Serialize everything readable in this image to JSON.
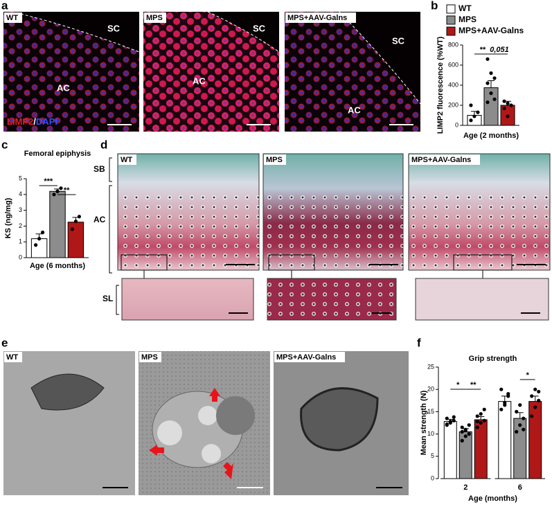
{
  "panel_labels": [
    "a",
    "b",
    "c",
    "d",
    "e",
    "f"
  ],
  "panel_a": {
    "images": [
      "WT",
      "MPS",
      "MPS+AAV-Galns"
    ],
    "regions": [
      "SC",
      "AC",
      "SC",
      "AC",
      "SC",
      "AC"
    ],
    "stain": [
      "LIMP2",
      "/",
      "DAPI"
    ]
  },
  "panel_d": {
    "images": [
      "WT",
      "MPS",
      "MPS+AAV-Galns"
    ],
    "zones": [
      "SB",
      "AC",
      "SL"
    ]
  },
  "panel_e": {
    "images": [
      "WT",
      "MPS",
      "MPS+AAV-Galns"
    ]
  },
  "chart_data": [
    {
      "type": "bar",
      "y_label": "LIMP2 fluorescence (%WT)",
      "x_label": "Age (2 months)",
      "ylim": [
        0,
        800
      ],
      "yticks": [
        0,
        200,
        400,
        600,
        800
      ],
      "legend": "top",
      "series": [
        {
          "name": "WT",
          "color": "#ffffff",
          "values": [
            100
          ],
          "errors": [
            40
          ],
          "points": [
            [
              50,
              90,
              130,
              200
            ]
          ]
        },
        {
          "name": "MPS",
          "color": "#8c8c8c",
          "values": [
            375
          ],
          "errors": [
            70
          ],
          "points": [
            [
              660,
              520,
              470,
              420,
              320,
              260,
              230
            ]
          ]
        },
        {
          "name": "MPS+AAV-Galns",
          "color": "#b01818",
          "values": [
            200
          ],
          "errors": [
            40
          ],
          "points": [
            [
              240,
              220,
              200,
              170,
              90
            ]
          ]
        }
      ],
      "annotations": [
        "**",
        "0,051"
      ]
    },
    {
      "type": "bar",
      "title": "Femoral epiphysis",
      "y_label": "KS (ng/mg)",
      "x_label": "Age (6 months)",
      "ylim": [
        0,
        5
      ],
      "yticks": [
        0,
        1,
        2,
        3,
        4,
        5
      ],
      "series": [
        {
          "color": "#ffffff",
          "values": [
            1.2
          ],
          "errors": [
            0.3
          ],
          "points": [
            [
              0.8,
              1.2,
              1.6
            ]
          ]
        },
        {
          "color": "#8c8c8c",
          "values": [
            4.2
          ],
          "errors": [
            0.15
          ],
          "points": [
            [
              4.0,
              4.2,
              4.4
            ]
          ]
        },
        {
          "color": "#b01818",
          "values": [
            2.25
          ],
          "errors": [
            0.3
          ],
          "points": [
            [
              1.8,
              2.3,
              2.6
            ]
          ]
        }
      ],
      "annotations": [
        "***",
        "**"
      ]
    },
    {
      "type": "bar",
      "title": "Grip strength",
      "y_label": "Mean strength (N)",
      "x_label": "Age (months)",
      "categories": [
        "2",
        "6"
      ],
      "ylim": [
        0,
        25
      ],
      "yticks": [
        0,
        5,
        10,
        15,
        20,
        25
      ],
      "series": [
        {
          "color": "#ffffff",
          "values": [
            12.8,
            17.3
          ],
          "errors": [
            0.5,
            1.2
          ],
          "points": [
            [
              12,
              12.5,
              13,
              13.5,
              12.8,
              13.8,
              12.2
            ],
            [
              15.5,
              17,
              18.5,
              20,
              16.5,
              19
            ]
          ]
        },
        {
          "color": "#8c8c8c",
          "values": [
            10.5,
            13.5
          ],
          "errors": [
            0.7,
            1.3
          ],
          "points": [
            [
              8.5,
              9.5,
              10,
              10.5,
              11,
              12,
              11.5,
              10.8
            ],
            [
              10.5,
              12,
              13.5,
              15,
              16.5,
              11
            ]
          ]
        },
        {
          "color": "#b01818",
          "values": [
            13.2,
            17.3
          ],
          "errors": [
            0.7,
            1.2
          ],
          "points": [
            [
              11.5,
              12.5,
              13,
              14,
              14.5,
              15.5,
              12.8
            ],
            [
              14,
              16,
              17.5,
              18.5,
              20,
              19.5
            ]
          ]
        }
      ],
      "annotations": [
        "*",
        "**",
        "*"
      ]
    }
  ]
}
